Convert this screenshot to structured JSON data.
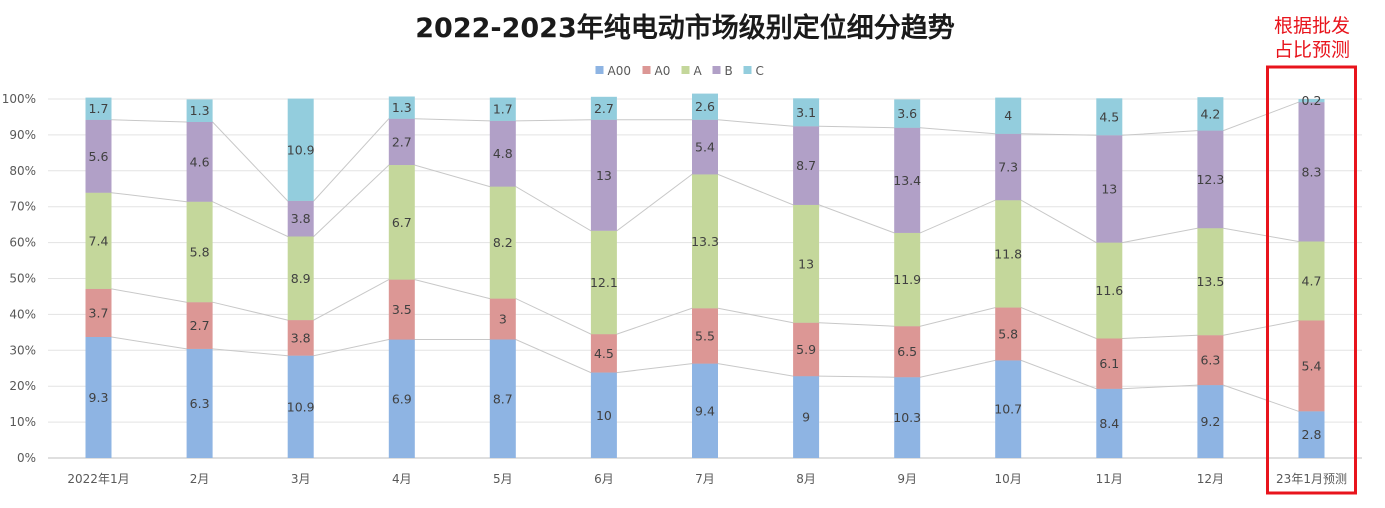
{
  "chart_data": {
    "type": "bar",
    "stacked": true,
    "title": "2022-2023年纯电动市场级别定位细分趋势",
    "annotation": [
      "根据批发",
      "占比预测"
    ],
    "annotation_color": "#e8141c",
    "ylim": [
      0,
      100
    ],
    "y_ticks": [
      "0%",
      "10%",
      "20%",
      "30%",
      "40%",
      "50%",
      "60%",
      "70%",
      "80%",
      "90%",
      "100%"
    ],
    "categories": [
      "2022年1月",
      "2月",
      "3月",
      "4月",
      "5月",
      "6月",
      "7月",
      "8月",
      "9月",
      "10月",
      "11月",
      "12月",
      "23年1月预测"
    ],
    "highlighted_category": "23年1月预测",
    "legend_position": "top-center",
    "series": [
      {
        "name": "A00",
        "color": "#8eb4e3",
        "share": [
          33.7,
          30.4,
          28.5,
          33.0,
          33.0,
          23.8,
          26.3,
          22.8,
          22.5,
          27.2,
          19.3,
          20.3,
          13.0
        ],
        "labels": [
          "9.3",
          "6.3",
          "10.9",
          "6.9",
          "8.7",
          "10",
          "9.4",
          "9",
          "10.3",
          "10.7",
          "8.4",
          "9.2",
          "2.8"
        ]
      },
      {
        "name": "A0",
        "color": "#dc9795",
        "share": [
          13.4,
          13.0,
          9.9,
          16.7,
          11.4,
          10.7,
          15.4,
          14.9,
          14.2,
          14.7,
          14.0,
          13.9,
          25.3
        ],
        "labels": [
          "3.7",
          "2.7",
          "3.8",
          "3.5",
          "3",
          "4.5",
          "5.5",
          "5.9",
          "6.5",
          "5.8",
          "6.1",
          "6.3",
          "5.4"
        ]
      },
      {
        "name": "A",
        "color": "#c4d79b",
        "share": [
          26.8,
          28.0,
          23.3,
          31.9,
          31.2,
          28.8,
          37.3,
          32.8,
          26.0,
          29.9,
          26.7,
          29.8,
          22.0
        ],
        "labels": [
          "7.4",
          "5.8",
          "8.9",
          "6.7",
          "8.2",
          "12.1",
          "13.3",
          "13",
          "11.9",
          "11.8",
          "11.6",
          "13.5",
          "4.7"
        ]
      },
      {
        "name": "B",
        "color": "#b1a0c7",
        "share": [
          20.3,
          22.2,
          9.9,
          12.9,
          18.3,
          30.9,
          15.2,
          21.9,
          29.3,
          18.5,
          29.9,
          27.2,
          38.8
        ],
        "labels": [
          "5.6",
          "4.6",
          "3.8",
          "2.7",
          "4.8",
          "13",
          "5.4",
          "8.7",
          "13.4",
          "7.3",
          "13",
          "12.3",
          "8.3"
        ]
      },
      {
        "name": "C",
        "color": "#93cddd",
        "share": [
          6.2,
          6.3,
          28.5,
          6.2,
          6.5,
          6.4,
          7.3,
          7.8,
          7.9,
          10.1,
          10.3,
          9.3,
          0.9
        ],
        "labels": [
          "1.7",
          "1.3",
          "10.9",
          "1.3",
          "1.7",
          "2.7",
          "2.6",
          "3.1",
          "3.6",
          "4",
          "4.5",
          "4.2",
          "0.2"
        ]
      }
    ]
  }
}
